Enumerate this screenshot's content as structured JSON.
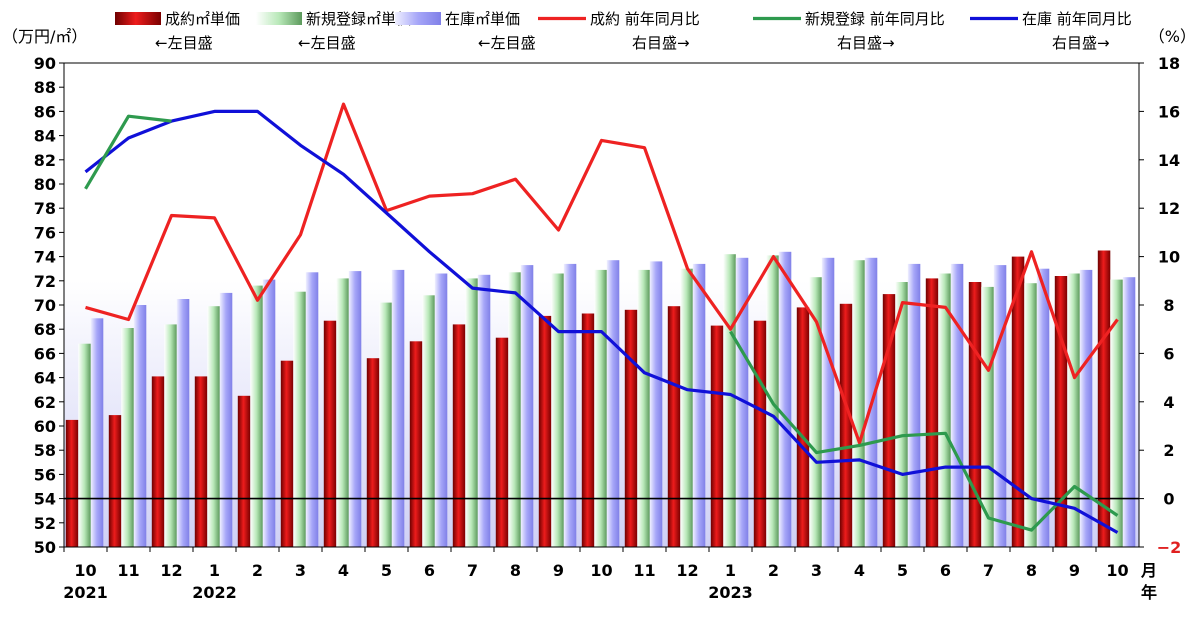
{
  "chart_data": {
    "type": "bar",
    "title": "",
    "left_unit": "（万円/㎡）",
    "right_unit": "（%）",
    "month_axis_label": "月",
    "year_axis_label": "年",
    "categories": [
      "10",
      "11",
      "12",
      "1",
      "2",
      "3",
      "4",
      "5",
      "6",
      "7",
      "8",
      "9",
      "10",
      "11",
      "12",
      "1",
      "2",
      "3",
      "4",
      "5",
      "6",
      "7",
      "8",
      "9",
      "10"
    ],
    "year_labels": [
      {
        "index": 0,
        "label": "2021"
      },
      {
        "index": 3,
        "label": "2022"
      },
      {
        "index": 15,
        "label": "2023"
      }
    ],
    "left_ylim": [
      50,
      90
    ],
    "left_ticks": [
      "50",
      "52",
      "54",
      "56",
      "58",
      "60",
      "62",
      "64",
      "66",
      "68",
      "70",
      "72",
      "74",
      "76",
      "78",
      "80",
      "82",
      "84",
      "86",
      "88",
      "90"
    ],
    "right_ylim": [
      -2,
      18
    ],
    "right_ticks": [
      "-2",
      "0",
      "2",
      "4",
      "6",
      "8",
      "10",
      "12",
      "14",
      "16",
      "18"
    ],
    "zero_line_right": 0,
    "bar_series": [
      {
        "name": "成約㎡単価",
        "axis_note": "←左目盛",
        "color": "#cc0000",
        "values": [
          60.5,
          60.9,
          64.1,
          64.1,
          62.5,
          65.4,
          68.7,
          65.6,
          67.0,
          68.4,
          67.3,
          69.1,
          69.3,
          69.6,
          69.9,
          68.3,
          68.7,
          69.8,
          70.1,
          70.9,
          72.2,
          71.9,
          74.0,
          72.4,
          74.5
        ]
      },
      {
        "name": "新規登録㎡単価",
        "axis_note": "←左目盛",
        "color": "#8fd08f",
        "values": [
          66.8,
          68.1,
          68.4,
          69.9,
          71.6,
          71.1,
          72.2,
          70.2,
          70.8,
          72.2,
          72.7,
          72.6,
          72.9,
          72.9,
          73.0,
          74.2,
          74.1,
          72.3,
          73.7,
          71.9,
          72.6,
          71.5,
          71.8,
          72.6,
          72.1
        ]
      },
      {
        "name": "在庫㎡単価",
        "axis_note": "←左目盛",
        "color": "#9a9af5",
        "values": [
          68.9,
          70.0,
          70.5,
          71.0,
          72.1,
          72.7,
          72.8,
          72.9,
          72.6,
          72.5,
          73.3,
          73.4,
          73.7,
          73.6,
          73.4,
          73.9,
          74.4,
          73.9,
          73.9,
          73.4,
          73.4,
          73.3,
          73.0,
          72.9,
          72.3
        ]
      }
    ],
    "line_series": [
      {
        "name": "成約 前年同月比",
        "axis_note": "右目盛→",
        "color": "#ee2222",
        "values": [
          7.9,
          7.4,
          11.7,
          11.6,
          8.2,
          10.9,
          16.3,
          11.9,
          12.5,
          12.6,
          13.2,
          11.1,
          14.8,
          14.5,
          9.5,
          7.0,
          10.0,
          7.3,
          2.3,
          8.1,
          7.9,
          5.3,
          10.2,
          5.0,
          7.4
        ]
      },
      {
        "name": "新規登録 前年同月比",
        "axis_note": "右目盛→",
        "color": "#2e9a4e",
        "values": [
          null,
          null,
          null,
          null,
          null,
          null,
          null,
          null,
          null,
          null,
          null,
          null,
          null,
          null,
          null,
          6.9,
          3.9,
          1.9,
          2.2,
          2.6,
          2.7,
          -0.8,
          -1.3,
          0.5,
          -0.7
        ]
      },
      {
        "name": "在庫 前年同月比",
        "axis_note": "右目盛→",
        "color": "#1010d8",
        "values": [
          13.5,
          14.9,
          15.6,
          16.0,
          16.0,
          14.6,
          13.4,
          11.8,
          10.2,
          8.7,
          8.5,
          6.9,
          6.9,
          5.2,
          4.5,
          4.3,
          3.4,
          1.5,
          1.6,
          1.0,
          1.3,
          1.3,
          0.0,
          -0.4,
          -1.4
        ]
      },
      {
        "name": "新規登録 前年同月比 (early)",
        "legend": false,
        "axis_note": "",
        "color": "#2e9a4e",
        "values": [
          12.8,
          15.8,
          15.6,
          null,
          null,
          null,
          null,
          null,
          null,
          null,
          null,
          null,
          null,
          null,
          null,
          null,
          null,
          null,
          null,
          null,
          null,
          null,
          null,
          null,
          null
        ]
      }
    ]
  }
}
